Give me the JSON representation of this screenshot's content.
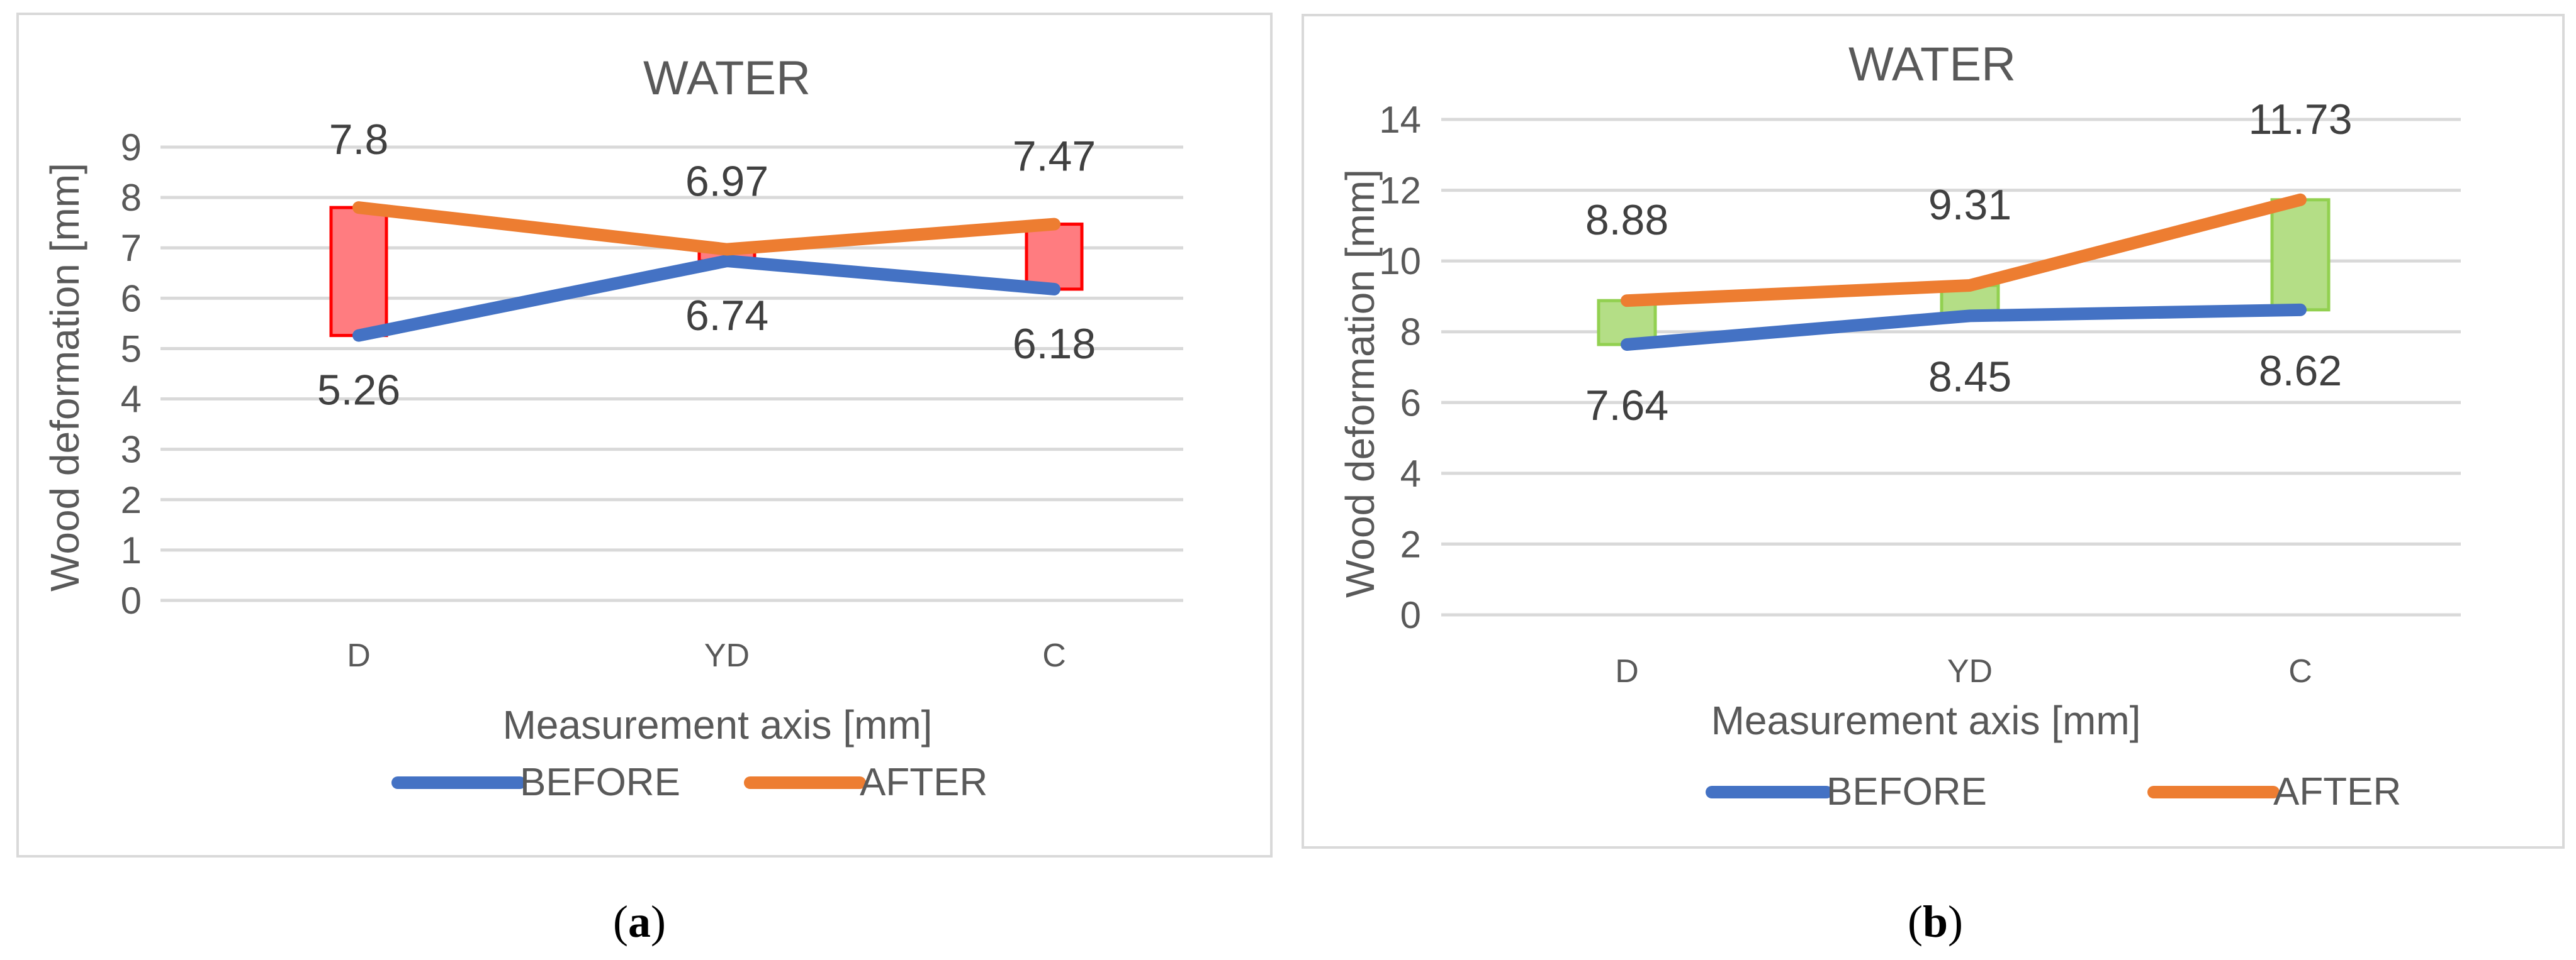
{
  "chart_data": [
    {
      "panel": "a",
      "caption_paren_open": "(",
      "caption_letter": "a",
      "caption_paren_close": ")",
      "type": "line",
      "title": "WATER",
      "xlabel": "Measurement axis [mm]",
      "ylabel": "Wood deformation [mm]",
      "categories": [
        "D",
        "YD",
        "C"
      ],
      "ylim": [
        0,
        9
      ],
      "yticks": [
        0,
        1,
        2,
        3,
        4,
        5,
        6,
        7,
        8,
        9
      ],
      "grid": true,
      "legend": "bottom",
      "box_color": "#ff0000",
      "box_fill": "#ff7c80",
      "series": [
        {
          "name": "BEFORE",
          "color": "#4472c4",
          "values": [
            5.26,
            6.74,
            6.18
          ],
          "labels": [
            "5.26",
            "6.74",
            "6.18"
          ],
          "label_pos": "below"
        },
        {
          "name": "AFTER",
          "color": "#ed7d31",
          "values": [
            7.8,
            6.97,
            7.47
          ],
          "labels": [
            "7.8",
            "6.97",
            "7.47"
          ],
          "label_pos": "above"
        }
      ]
    },
    {
      "panel": "b",
      "caption_paren_open": "(",
      "caption_letter": "b",
      "caption_paren_close": ")",
      "type": "line",
      "title": "WATER",
      "xlabel": "Measurement axis [mm]",
      "ylabel": "Wood deformation [mm]",
      "categories": [
        "D",
        "YD",
        "C"
      ],
      "ylim": [
        0,
        14
      ],
      "yticks": [
        0,
        2,
        4,
        6,
        8,
        10,
        12,
        14
      ],
      "grid": true,
      "legend": "bottom",
      "box_color": "#92d050",
      "box_fill": "#b4de86",
      "series": [
        {
          "name": "BEFORE",
          "color": "#4472c4",
          "values": [
            7.64,
            8.45,
            8.62
          ],
          "labels": [
            "7.64",
            "8.45",
            "8.62"
          ],
          "label_pos": "below"
        },
        {
          "name": "AFTER",
          "color": "#ed7d31",
          "values": [
            8.88,
            9.31,
            11.73
          ],
          "labels": [
            "8.88",
            "9.31",
            "11.73"
          ],
          "label_pos": "above"
        }
      ]
    }
  ]
}
